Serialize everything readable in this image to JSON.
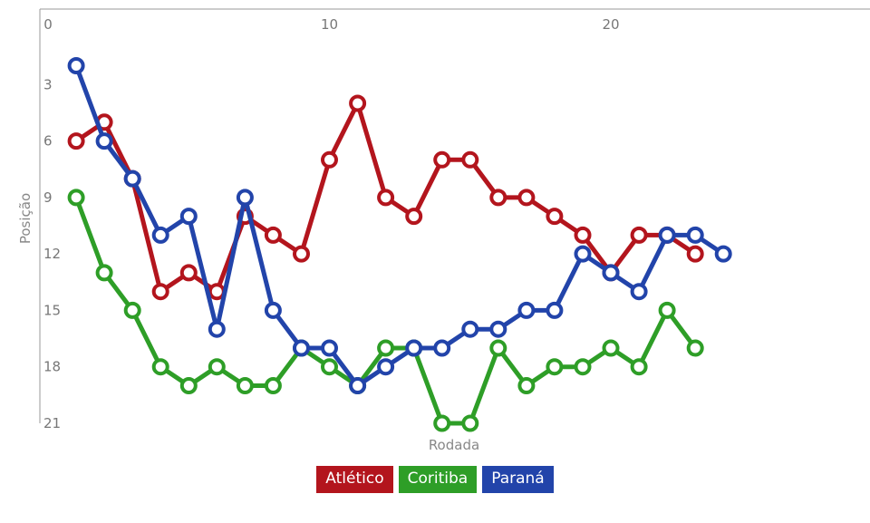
{
  "chart_data": {
    "type": "line",
    "xlabel": "Rodada",
    "ylabel": "Posição",
    "x_ticks": [
      0,
      10,
      20
    ],
    "y_ticks": [
      3,
      6,
      9,
      12,
      15,
      18,
      21
    ],
    "xlim": [
      0,
      29.5
    ],
    "ylim": [
      0,
      21
    ],
    "y_inverted": true,
    "grid": false,
    "legend_position": "bottom-center",
    "series": [
      {
        "name": "Atlético",
        "color": "#b3151d",
        "x": [
          1,
          2,
          3,
          4,
          5,
          6,
          7,
          8,
          9,
          10,
          11,
          12,
          13,
          14,
          15,
          16,
          17,
          18,
          19,
          20,
          21,
          22,
          23
        ],
        "y": [
          6,
          5,
          8,
          14,
          13,
          14,
          10,
          11,
          12,
          7,
          4,
          9,
          10,
          7,
          7,
          9,
          9,
          10,
          11,
          13,
          11,
          11,
          12
        ]
      },
      {
        "name": "Coritiba",
        "color": "#2e9e27",
        "x": [
          1,
          2,
          3,
          4,
          5,
          6,
          7,
          8,
          9,
          10,
          11,
          12,
          13,
          14,
          15,
          16,
          17,
          18,
          19,
          20,
          21,
          22,
          23
        ],
        "y": [
          9,
          13,
          15,
          18,
          19,
          18,
          19,
          19,
          17,
          18,
          19,
          17,
          17,
          21,
          21,
          17,
          19,
          18,
          18,
          17,
          18,
          15,
          17
        ]
      },
      {
        "name": "Paraná",
        "color": "#2244aa",
        "x": [
          1,
          2,
          3,
          4,
          5,
          6,
          7,
          8,
          9,
          10,
          11,
          12,
          13,
          14,
          15,
          16,
          17,
          18,
          19,
          20,
          21,
          22,
          23,
          24
        ],
        "y": [
          2,
          6,
          8,
          11,
          10,
          16,
          9,
          15,
          17,
          17,
          19,
          18,
          17,
          17,
          16,
          16,
          15,
          15,
          12,
          13,
          14,
          11,
          11,
          12
        ]
      }
    ]
  }
}
